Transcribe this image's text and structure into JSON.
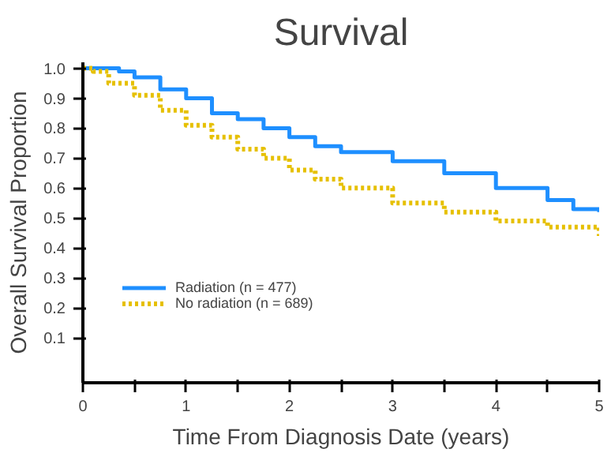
{
  "chart_data": {
    "type": "step",
    "title": "Survival",
    "xlabel": "Time From Diagnosis Date (years)",
    "ylabel": "Overall Survival Proportion",
    "xlim": [
      0,
      5
    ],
    "ylim": [
      -0.05,
      1.02
    ],
    "xticks": [
      0,
      {
        "value": 0.5,
        "label": null
      },
      1,
      {
        "value": 1.5,
        "label": null
      },
      2,
      {
        "value": 2.5,
        "label": null
      },
      3,
      {
        "value": 3.5,
        "label": null
      },
      4,
      {
        "value": 4.5,
        "label": null
      },
      5
    ],
    "yticks": [
      0.1,
      0.2,
      0.3,
      0.4,
      0.5,
      0.6,
      0.7,
      0.8,
      0.9,
      {
        "value": 1,
        "label": "1.0"
      }
    ],
    "grid": false,
    "legend": "bottom left",
    "marker": "none",
    "series": [
      {
        "name": "Radiation (n = 477)",
        "color": "#1e8fff",
        "line_style": "solid",
        "x": [
          0,
          0.35,
          0.5,
          0.75,
          1.0,
          1.25,
          1.5,
          1.75,
          2.0,
          2.25,
          2.5,
          3.0,
          3.5,
          4.0,
          4.5,
          4.75,
          5.0
        ],
        "values": [
          1.0,
          0.99,
          0.97,
          0.93,
          0.9,
          0.85,
          0.83,
          0.8,
          0.77,
          0.74,
          0.72,
          0.69,
          0.65,
          0.6,
          0.56,
          0.53,
          0.52
        ]
      },
      {
        "name": "No radiation (n = 689)",
        "color": "#e6c000",
        "line_style": "dotted",
        "x": [
          0,
          0.1,
          0.25,
          0.5,
          0.75,
          1.0,
          1.25,
          1.5,
          1.75,
          2.0,
          2.25,
          2.5,
          3.0,
          3.5,
          4.0,
          4.5,
          5.0
        ],
        "values": [
          1.0,
          0.99,
          0.95,
          0.91,
          0.86,
          0.81,
          0.77,
          0.73,
          0.7,
          0.66,
          0.63,
          0.6,
          0.55,
          0.52,
          0.49,
          0.47,
          0.44
        ]
      }
    ]
  }
}
